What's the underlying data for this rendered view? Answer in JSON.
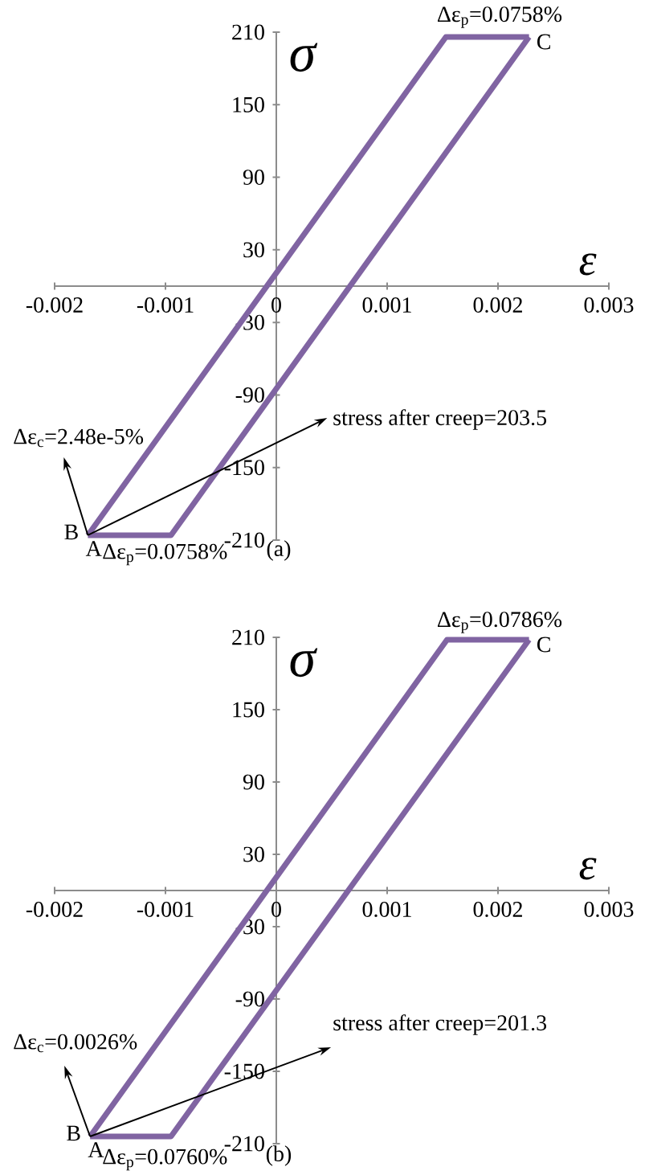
{
  "chart_data": [
    {
      "type": "line",
      "xlabel": "ε",
      "ylabel": "σ",
      "xlim": [
        -0.002,
        0.003
      ],
      "ylim": [
        -210,
        210
      ],
      "xticks": [
        -0.002,
        -0.001,
        0,
        0.001,
        0.002,
        0.003
      ],
      "yticks": [
        -210,
        -150,
        -90,
        -30,
        30,
        90,
        150,
        210
      ],
      "series": [
        {
          "color": "#8064a2",
          "x": [
            -0.0017,
            0.00153,
            0.00228
          ],
          "values": [
            -206,
            206,
            206
          ]
        },
        {
          "color": "#8064a2",
          "x": [
            -0.0017,
            -0.00095,
            0.00228
          ],
          "values": [
            -206,
            -206,
            206
          ]
        }
      ],
      "marker": "none",
      "line_style": "solid",
      "annotations": [
        "Δε$_{p}$=0.0758%",
        {
          "text": "C",
          "x": 0.00228,
          "y": 206
        },
        {
          "text": "B",
          "x": -0.0017,
          "y": -206
        },
        {
          "text": "A",
          "x": -0.0017,
          "y": -206
        },
        "Δε$_{p}$=0.0758%",
        {
          "text": "Δε$_{c}$=2.48e-5%",
          "x": -0.0017,
          "y": -206
        },
        "stress after creep=203.5",
        "(a)"
      ]
    },
    {
      "type": "line",
      "xlabel": "ε",
      "ylabel": "σ",
      "xlim": [
        -0.002,
        0.003
      ],
      "ylim": [
        -210,
        210
      ],
      "xticks": [
        -0.002,
        -0.001,
        0,
        0.001,
        0.002,
        0.003
      ],
      "yticks": [
        -210,
        -150,
        -90,
        -30,
        30,
        90,
        150,
        210
      ],
      "series": [
        {
          "color": "#8064a2",
          "x": [
            -0.00168,
            0.00154,
            0.00228
          ],
          "values": [
            -204,
            208,
            208
          ]
        },
        {
          "color": "#8064a2",
          "x": [
            -0.00168,
            -0.00095,
            0.00228
          ],
          "values": [
            -204,
            -204,
            208
          ]
        }
      ],
      "marker": "none",
      "line_style": "solid",
      "annotations": [
        "Δε$_{p}$=0.0786%",
        {
          "text": "C",
          "x": 0.00228,
          "y": 208
        },
        {
          "text": "B",
          "x": -0.00168,
          "y": -204
        },
        {
          "text": "A",
          "x": -0.00168,
          "y": -204
        },
        "Δε$_{p}$=0.0760%",
        {
          "text": "Δε$_{c}$=0.0026%",
          "x": -0.00168,
          "y": -204
        },
        "stress after creep=201.3",
        "(b)"
      ]
    }
  ]
}
